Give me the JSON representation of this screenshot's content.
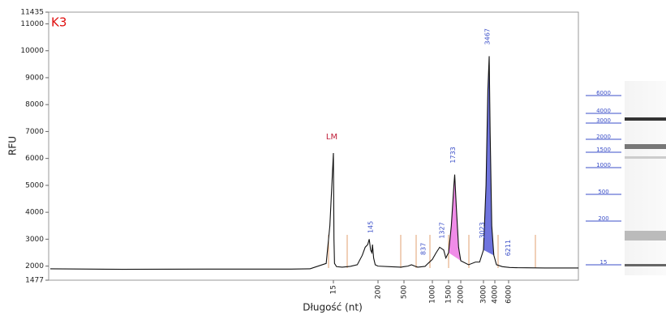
{
  "chart_data": {
    "type": "line",
    "title": "K3",
    "x_label": "Długość (nt)",
    "y_label": "RFU",
    "xlim": [
      1,
      60000
    ],
    "xticks": [
      15,
      200,
      500,
      1000,
      1500,
      2000,
      3000,
      4000,
      6000
    ],
    "ylim": [
      1477,
      11435
    ],
    "yticks": [
      1477,
      2000,
      3000,
      4000,
      5000,
      6000,
      7000,
      8000,
      9000,
      10000,
      11000,
      11435
    ],
    "series": [
      {
        "name": "K3",
        "color": "#111111",
        "x": [
          1,
          2,
          5,
          10,
          12,
          14,
          14.5,
          15,
          15.5,
          16,
          18,
          25,
          40,
          60,
          80,
          95,
          110,
          120,
          130,
          140,
          145,
          155,
          170,
          200,
          300,
          450,
          500,
          550,
          600,
          650,
          700,
          837,
          900,
          1000,
          1100,
          1200,
          1327,
          1400,
          1500,
          1600,
          1700,
          1733,
          1800,
          1900,
          2000,
          2300,
          2600,
          2800,
          3000,
          3200,
          3350,
          3467,
          3550,
          3700,
          3900,
          4200,
          5000,
          6211,
          8000,
          20000,
          60000
        ],
        "values": [
          1900,
          1880,
          1890,
          1890,
          1900,
          2100,
          3500,
          6200,
          3000,
          2100,
          1980,
          1960,
          1990,
          2050,
          2400,
          2700,
          2800,
          3000,
          2600,
          2500,
          2800,
          2300,
          2050,
          2000,
          1980,
          1960,
          1980,
          2000,
          2050,
          2000,
          1960,
          1990,
          2100,
          2250,
          2500,
          2700,
          2600,
          2300,
          2500,
          3500,
          5000,
          5400,
          4200,
          2700,
          2200,
          2050,
          2150,
          2150,
          2600,
          5000,
          8500,
          9800,
          7000,
          3500,
          2400,
          2050,
          1980,
          1950,
          1940,
          1930,
          1930
        ]
      }
    ],
    "shaded": [
      {
        "from": 1500,
        "to": 2000,
        "color": "#f08ce8"
      },
      {
        "from": 3000,
        "to": 3900,
        "color": "#6f74de"
      }
    ],
    "annotations": [
      {
        "x": 15,
        "text": "LM",
        "color": "#c0203a"
      },
      {
        "x": 145,
        "text": "145",
        "color": "#3b4fc8"
      },
      {
        "x": 837,
        "text": "837",
        "color": "#3b4fc8"
      },
      {
        "x": 1327,
        "text": "1327",
        "color": "#3b4fc8"
      },
      {
        "x": 1733,
        "text": "1733",
        "color": "#3b4fc8"
      },
      {
        "x": 3023,
        "text": "3023",
        "color": "#3b4fc8"
      },
      {
        "x": 3467,
        "text": "3467",
        "color": "#3b4fc8"
      },
      {
        "x": 6211,
        "text": "6211",
        "color": "#3b4fc8"
      }
    ],
    "ladder": [
      6000,
      4000,
      3000,
      2000,
      1500,
      1000,
      500,
      200,
      15
    ]
  }
}
